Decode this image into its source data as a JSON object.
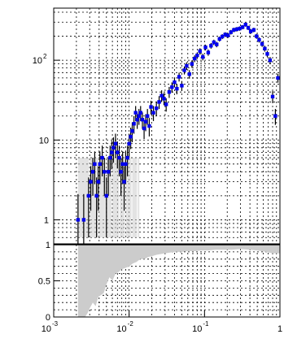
{
  "chart_data": [
    {
      "type": "scatter",
      "panel": "upper",
      "xscale": "log",
      "yscale": "log",
      "xlim": [
        0.001,
        1
      ],
      "ylim": [
        0.5,
        450
      ],
      "grid": true,
      "yticks": [
        {
          "value": 1,
          "label": "1",
          "exp": ""
        },
        {
          "value": 10,
          "label": "10",
          "exp": ""
        },
        {
          "value": 100,
          "label": "10",
          "exp": "2"
        }
      ],
      "marker_color": "#0000ee",
      "errorbar_color": "#000000",
      "band_color": "#cccccc",
      "series": [
        {
          "x": [
            0.0021,
            0.0025,
            0.0029,
            0.0031,
            0.0033,
            0.0035,
            0.0037,
            0.0039,
            0.0041,
            0.0044,
            0.0047,
            0.005,
            0.0053,
            0.0056,
            0.0059,
            0.0062,
            0.0066,
            0.007,
            0.0074,
            0.0078,
            0.0082,
            0.0086,
            0.009,
            0.0095,
            0.01,
            0.0105,
            0.011,
            0.0116,
            0.0122,
            0.0128,
            0.0135,
            0.0142,
            0.015,
            0.0158,
            0.0166,
            0.0175,
            0.0185,
            0.0195,
            0.021,
            0.023,
            0.025,
            0.027,
            0.029,
            0.031,
            0.034,
            0.037,
            0.04,
            0.043,
            0.046,
            0.05,
            0.054,
            0.058,
            0.063,
            0.068,
            0.074,
            0.08,
            0.087,
            0.095,
            0.103,
            0.112,
            0.122,
            0.133,
            0.145,
            0.158,
            0.172,
            0.188,
            0.205,
            0.224,
            0.245,
            0.268,
            0.293,
            0.32,
            0.35,
            0.38,
            0.41,
            0.45,
            0.49,
            0.53,
            0.58,
            0.63,
            0.68,
            0.74,
            0.8,
            0.87,
            0.94
          ],
          "y": [
            1,
            1,
            2,
            3,
            4,
            5,
            2,
            3,
            5,
            6,
            4,
            2,
            4,
            6,
            7,
            8,
            9,
            7,
            6,
            4,
            5,
            3,
            5,
            6,
            9,
            11,
            13,
            16,
            22,
            18,
            20,
            22,
            18,
            14,
            17,
            20,
            15,
            26,
            22,
            25,
            30,
            36,
            33,
            28,
            40,
            46,
            53,
            44,
            62,
            48,
            75,
            85,
            67,
            90,
            105,
            115,
            130,
            110,
            145,
            125,
            152,
            168,
            158,
            185,
            198,
            210,
            205,
            225,
            240,
            245,
            250,
            260,
            280,
            255,
            230,
            240,
            200,
            180,
            160,
            140,
            120,
            100,
            35,
            20,
            60
          ],
          "yerr": [
            1.1,
            1.1,
            1.4,
            1.7,
            2,
            2.2,
            1.4,
            1.7,
            2.2,
            2.5,
            2,
            1.4,
            2,
            2.5,
            2.7,
            2.8,
            3,
            2.6,
            2.5,
            2,
            2.2,
            1.7,
            2.2,
            2.5,
            3,
            3.3,
            3.6,
            4,
            4.7,
            4.2,
            4.5,
            4.7,
            4.2,
            3.7,
            4.1,
            4.5,
            3.9,
            5.1,
            4.7,
            5,
            5.5,
            6,
            5.7,
            5.3,
            6.3,
            6.8,
            7.3,
            6.6,
            7.9,
            6.9,
            8.7,
            9.2,
            8.2,
            9.5,
            10.2,
            10.7,
            11.4,
            10.5,
            12,
            11.2,
            12.3,
            13,
            12.6,
            13.6,
            14,
            14.5,
            14.3,
            15,
            15.5,
            15.7,
            15.8,
            16.1,
            16.7,
            16,
            15.2,
            15.5,
            14.1,
            13.4,
            12.6,
            11.8,
            11,
            10,
            6,
            4.5,
            7.7
          ]
        }
      ]
    },
    {
      "type": "area",
      "panel": "lower",
      "xscale": "log",
      "xlim": [
        0.001,
        1
      ],
      "ylim": [
        0,
        1
      ],
      "grid": true,
      "reference_line": 1,
      "yticks": [
        {
          "value": 0,
          "label": "0"
        },
        {
          "value": 0.5,
          "label": "0.5"
        },
        {
          "value": 1,
          "label": "1"
        }
      ],
      "xticks": [
        {
          "value": 0.001,
          "label": "10",
          "exp": "-3"
        },
        {
          "value": 0.01,
          "label": "10",
          "exp": "-2"
        },
        {
          "value": 0.1,
          "label": "10",
          "exp": "-1"
        },
        {
          "value": 1,
          "label": "1",
          "exp": ""
        }
      ],
      "band_color": "#cccccc",
      "band": {
        "x": [
          0.0021,
          0.0024,
          0.0026,
          0.0028,
          0.003,
          0.0033,
          0.0036,
          0.0039,
          0.0042,
          0.0046,
          0.005,
          0.0055,
          0.006,
          0.0066,
          0.0072,
          0.008,
          0.009,
          0.01,
          0.0112,
          0.0125,
          0.014,
          0.016,
          0.018,
          0.02,
          0.023,
          0.026,
          0.03,
          0.035,
          0.04,
          0.05,
          0.06,
          0.075,
          0.09,
          0.11,
          0.14,
          0.18,
          0.23,
          0.3,
          0.4,
          0.5,
          0.65,
          0.8,
          1.0
        ],
        "lower": [
          0.0,
          0.0,
          0.0,
          0.05,
          0.12,
          0.2,
          0.15,
          0.28,
          0.3,
          0.33,
          0.45,
          0.55,
          0.5,
          0.6,
          0.62,
          0.66,
          0.68,
          0.7,
          0.74,
          0.76,
          0.8,
          0.8,
          0.83,
          0.84,
          0.86,
          0.87,
          0.88,
          0.89,
          0.9,
          0.9,
          0.91,
          0.91,
          0.92,
          0.92,
          0.93,
          0.93,
          0.93,
          0.94,
          0.93,
          0.92,
          0.9,
          0.88,
          0.88
        ]
      }
    }
  ]
}
